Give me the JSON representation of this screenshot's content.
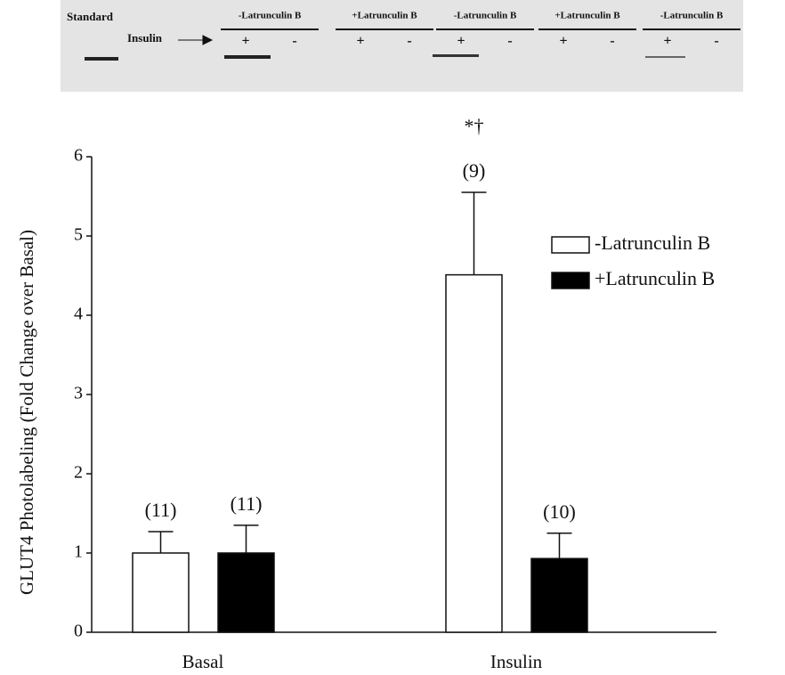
{
  "blot": {
    "standard": "Standard",
    "insulin": "Insulin",
    "lanes": [
      {
        "label": "-Latrunculin B",
        "signs": [
          "+",
          "-"
        ]
      },
      {
        "label": "+Latrunculin B",
        "signs": [
          "+",
          "-"
        ]
      },
      {
        "label": "-Latrunculin B",
        "signs": [
          "+",
          "-"
        ]
      },
      {
        "label": "+Latrunculin B",
        "signs": [
          "+",
          "-"
        ]
      },
      {
        "label": "-Latrunculin B",
        "signs": [
          "+",
          "-"
        ]
      }
    ]
  },
  "chart_data": {
    "type": "bar",
    "y_label": "GLUT4 Photolabeling (Fold Change over Basal)",
    "categories": [
      "Basal",
      "Insulin"
    ],
    "series": [
      {
        "name": "-Latrunculin B",
        "color": "#ffffff",
        "values": [
          1.0,
          4.51
        ],
        "errors": [
          0.27,
          1.04
        ],
        "n_labels": [
          "(11)",
          "(9)"
        ]
      },
      {
        "name": "+Latrunculin B",
        "color": "#000000",
        "values": [
          1.0,
          0.93
        ],
        "errors": [
          0.35,
          0.32
        ],
        "n_labels": [
          "(11)",
          "(10)"
        ]
      }
    ],
    "annotation": "*†",
    "ylim": [
      0,
      6
    ],
    "yticks": [
      0,
      1,
      2,
      3,
      4,
      5,
      6
    ],
    "legend": "upper right"
  }
}
